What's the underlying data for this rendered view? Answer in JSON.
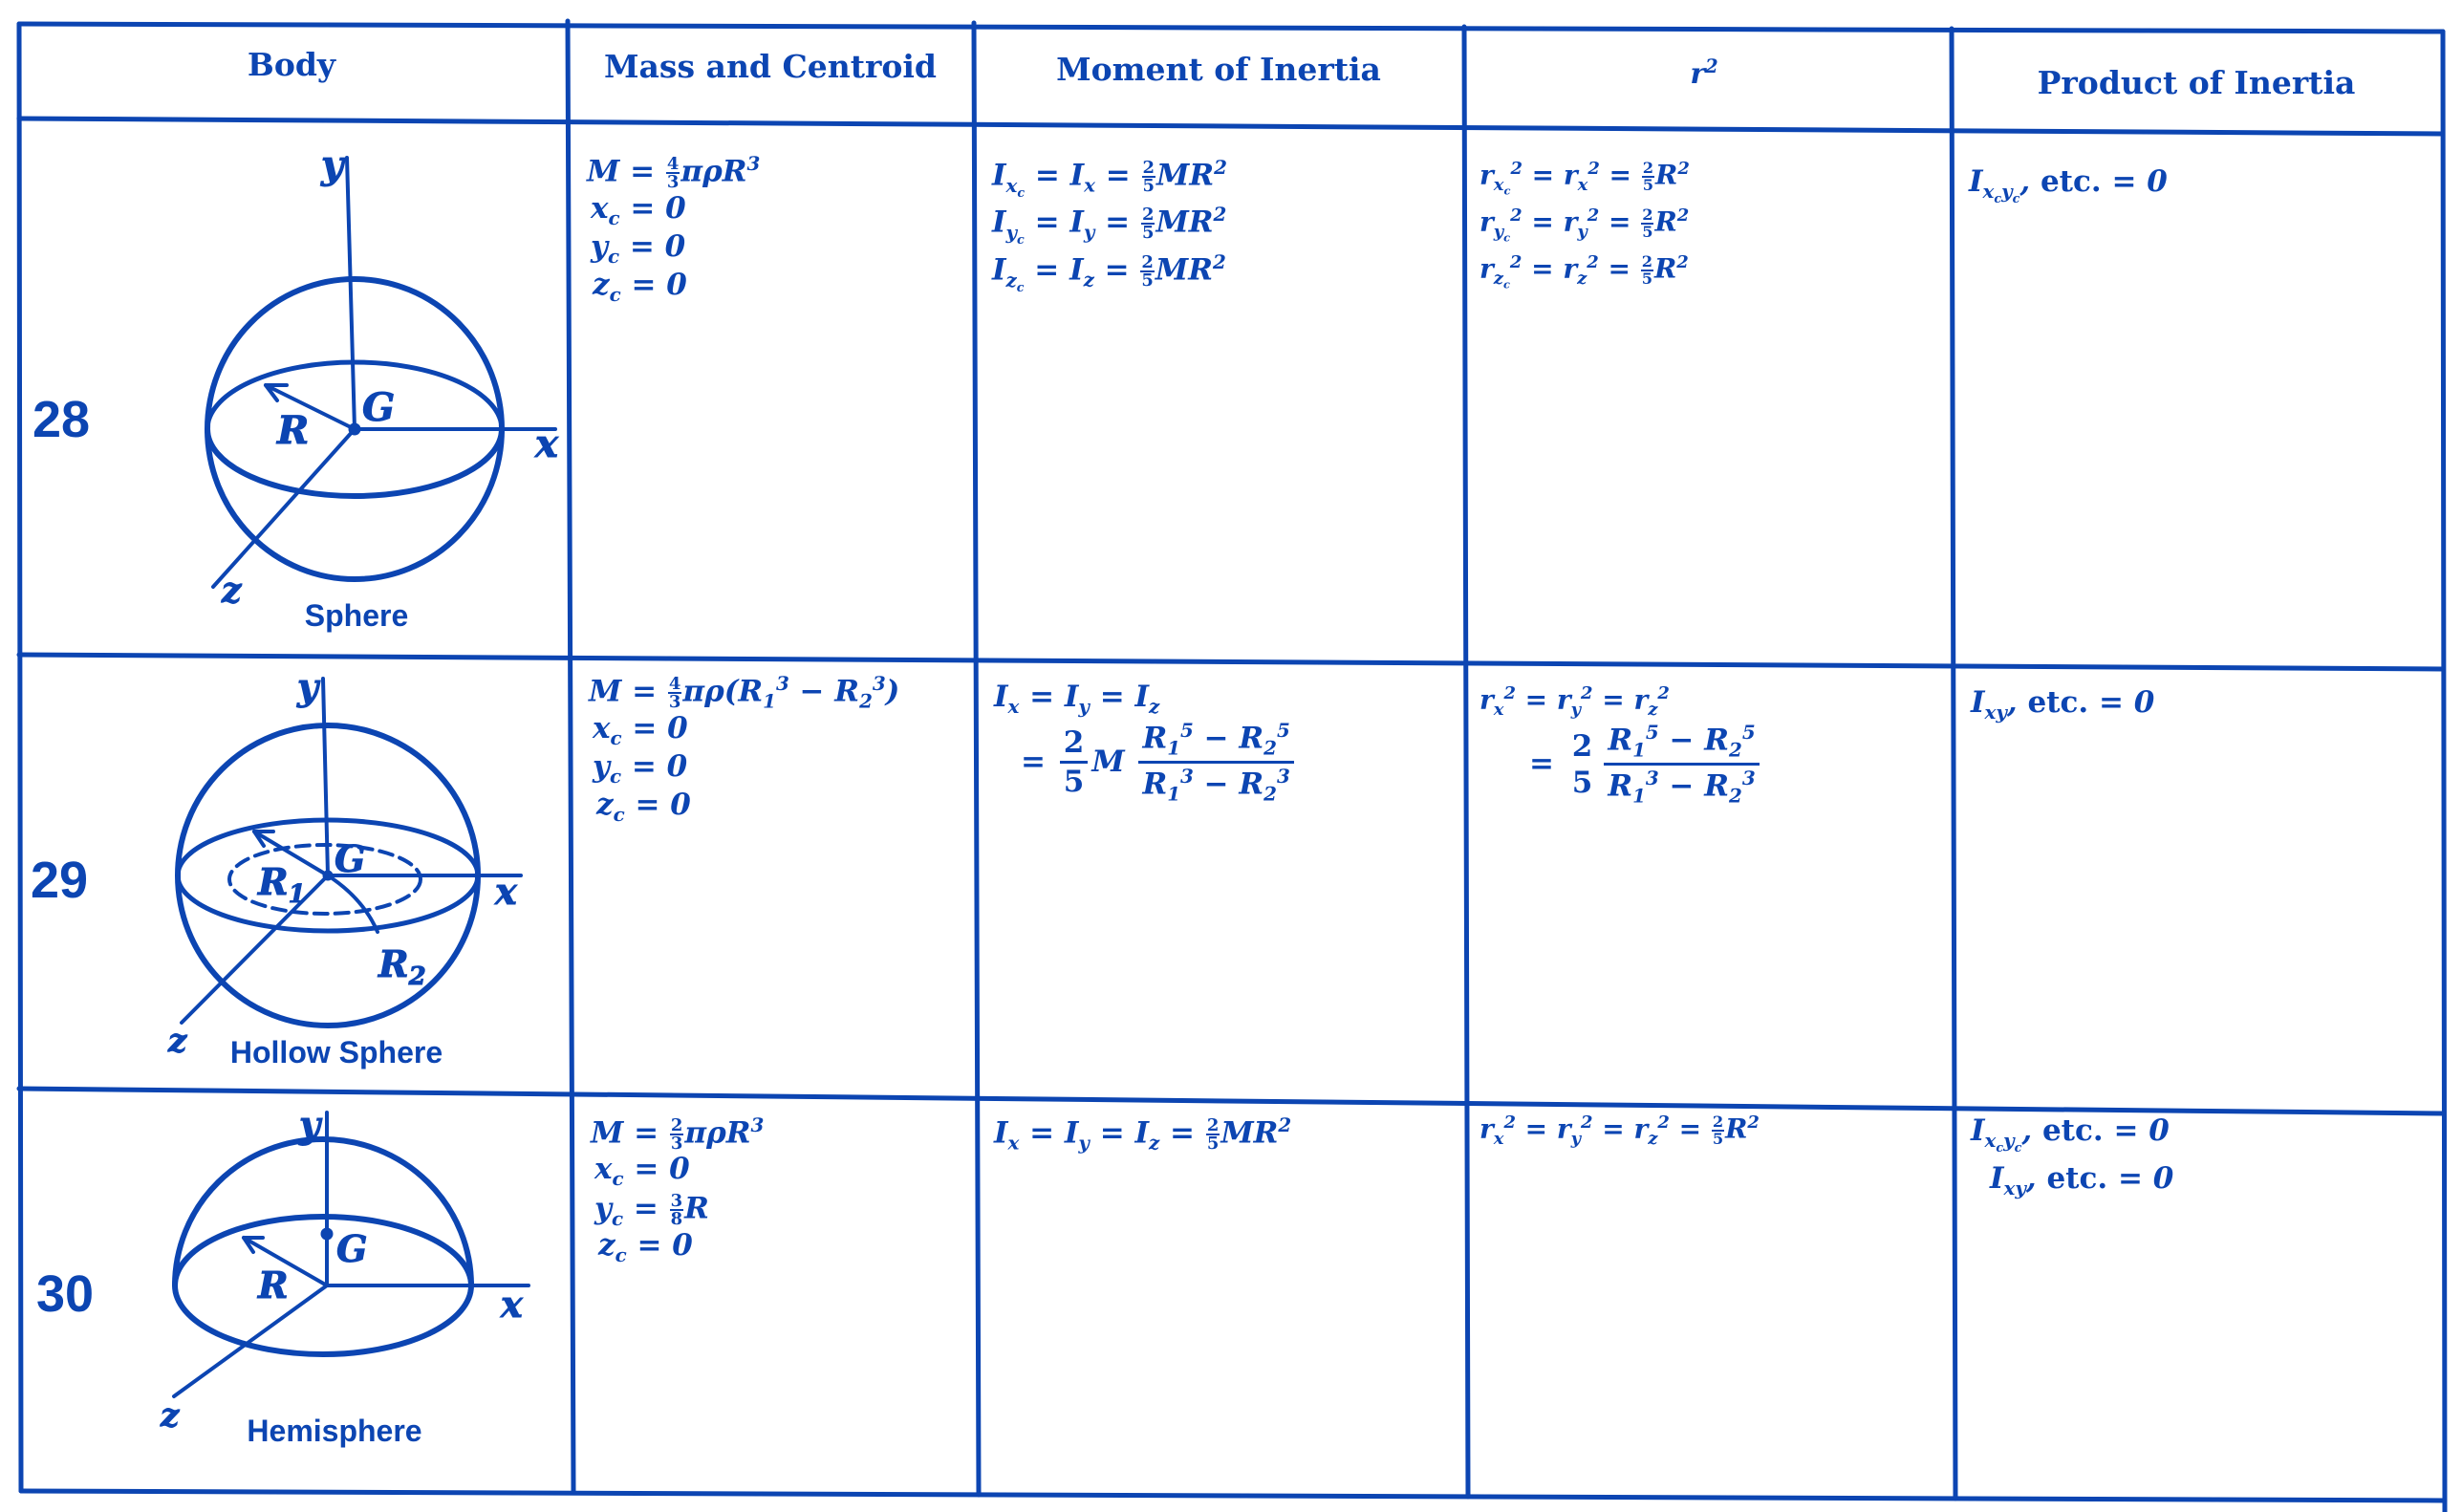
{
  "colors": {
    "ink": "#0c45b2",
    "paper": "#ffffff"
  },
  "header": {
    "body": "Body",
    "mass": "Mass and Centroid",
    "moment": "Moment of Inertia",
    "r2": "r^{2}",
    "product": "Product of Inertia"
  },
  "rows": [
    {
      "number": "28",
      "caption": "Sphere",
      "labels": {
        "y": "y",
        "x": "x",
        "z": "z",
        "G": "G",
        "R": "R"
      },
      "mass": [
        "M = [4/3]πρR^{3}",
        "x_{c} = 0",
        "y_{c} = 0",
        "z_{c} = 0"
      ],
      "moment": [
        "I_{x_{c}} = I_{x} = [2/5]MR^{2}",
        "I_{y_{c}} = I_{y} = [2/5]MR^{2}",
        "I_{z_{c}} = I_{z} = [2/5]MR^{2}"
      ],
      "r2": [
        "r_{x_{c}}^{2} = r_{x}^{2} = [2/5]R^{2}",
        "r_{y_{c}}^{2} = r_{y}^{2} = [2/5]R^{2}",
        "r_{z_{c}}^{2} = r_{z}^{2} = [2/5]R^{2}"
      ],
      "product": [
        "I_{x_{c}y_{c}}, <span class=up>etc.</span> = 0"
      ]
    },
    {
      "number": "29",
      "caption": "Hollow Sphere",
      "labels": {
        "y": "y",
        "x": "x",
        "z": "z",
        "G": "G",
        "R1": "R_{1}",
        "R2": "R_{2}"
      },
      "mass": [
        "M = [4/3]πρ(R_{1}^{3} − R_{2}^{3})",
        "x_{c} = 0",
        "y_{c} = 0",
        "z_{c} = 0"
      ],
      "moment": {
        "line1": "I_{x} = I_{y} = I_{z}",
        "eq": "=",
        "coef_num": "2",
        "coef_den": "5",
        "factor": "M",
        "num": "R_{1}^{5} − R_{2}^{5}",
        "den": "R_{1}^{3} − R_{2}^{3}"
      },
      "r2": {
        "line1": "r_{x}^{2} = r_{y}^{2} = r_{z}^{2}",
        "eq": "=",
        "coef_num": "2",
        "coef_den": "5",
        "num": "R_{1}^{5} − R_{2}^{5}",
        "den": "R_{1}^{3} − R_{2}^{3}"
      },
      "product": [
        "I_{xy}, <span class=up>etc.</span> = 0"
      ]
    },
    {
      "number": "30",
      "caption": "Hemisphere",
      "labels": {
        "y": "y",
        "x": "x",
        "z": "z",
        "G": "G",
        "R": "R"
      },
      "mass": [
        "M = [2/3]πρR^{3}",
        "x_{c} = 0",
        "y_{c} = [3/8]R",
        "z_{c} = 0"
      ],
      "moment": [
        "I_{x} = I_{y} = I_{z} = [2/5]MR^{2}"
      ],
      "r2": [
        "r_{x}^{2} = r_{y}^{2} = r_{z}^{2} = [2/5]R^{2}"
      ],
      "product": [
        "I_{x_{c}y_{c}}, <span class=up>etc.</span> = 0",
        "I_{xy}, <span class=up>etc.</span> = 0"
      ]
    }
  ]
}
